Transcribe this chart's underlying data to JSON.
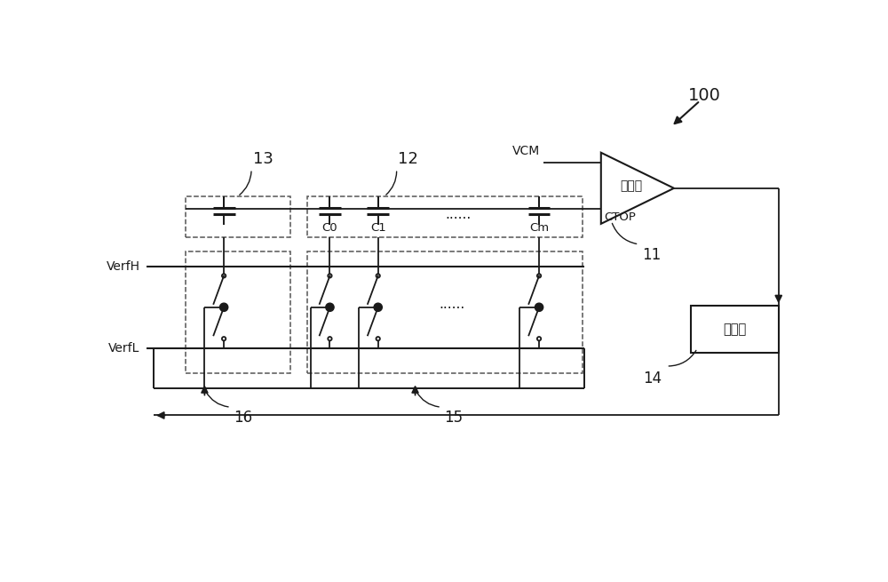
{
  "bg_color": "#ffffff",
  "lc": "#1a1a1a",
  "dc": "#555555",
  "fig_width": 10.0,
  "fig_height": 6.55,
  "comparator_label": "比较器",
  "controller_label": "控制器",
  "vcm_label": "VCM",
  "ctop_label": "CTOP",
  "verfh_label": "VerfH",
  "verfl_label": "VerfL",
  "label_100": "100",
  "label_11": "11",
  "label_12": "12",
  "label_13": "13",
  "label_14": "14",
  "label_15": "15",
  "label_16": "16",
  "cap_C0": "C0",
  "cap_C1": "C1",
  "cap_dots": "......",
  "cap_Cm": "Cm",
  "sw_dots": "......"
}
